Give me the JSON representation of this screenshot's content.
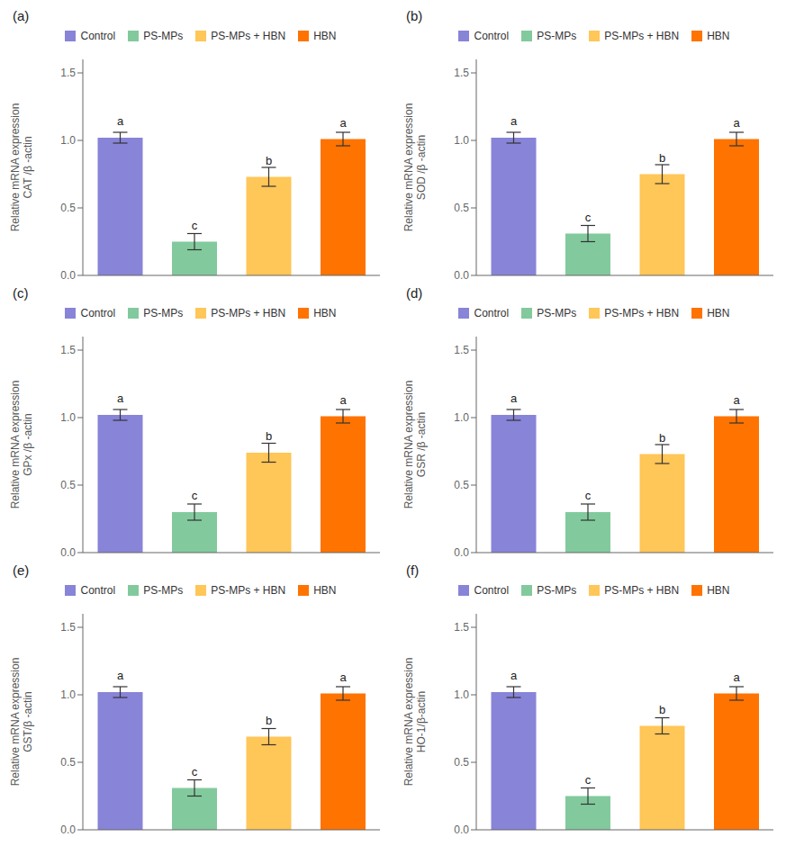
{
  "chart_data": [
    {
      "type": "bar",
      "title": "(a)",
      "y_label": "Relative mRNA expression\nCAT /β -actin",
      "categories": [
        null,
        null,
        null,
        null
      ],
      "series": [
        {
          "name": "Control",
          "color": "#8884d8",
          "values": [
            1.02,
            null,
            null,
            null
          ],
          "errors": [
            0.04,
            null,
            null,
            null
          ]
        },
        {
          "name": "PS-MPs",
          "color": "#82ca9d",
          "values": [
            null,
            0.25,
            null,
            null
          ],
          "errors": [
            null,
            0.06,
            null,
            null
          ]
        },
        {
          "name": "PS-MPs + HBN",
          "color": "#ffc658",
          "values": [
            null,
            null,
            0.73,
            null
          ],
          "errors": [
            null,
            null,
            0.07,
            null
          ]
        },
        {
          "name": "HBN",
          "color": "#ff7300",
          "values": [
            null,
            null,
            null,
            1.01
          ],
          "errors": [
            null,
            null,
            null,
            0.05
          ]
        }
      ],
      "annotations": [
        "a",
        "c",
        "b",
        "a"
      ],
      "ylim": [
        0,
        1.6
      ],
      "yticks": [
        {
          "value": 0,
          "label": "0.0"
        },
        0.5,
        {
          "value": 1,
          "label": "1.0"
        },
        1.5
      ],
      "tick_labels": "y",
      "legend": "top"
    },
    {
      "type": "bar",
      "title": "(b)",
      "y_label": "Relative mRNA expression\nSOD /β -actin",
      "categories": [
        null,
        null,
        null,
        null
      ],
      "series": [
        {
          "name": "Control",
          "color": "#8884d8",
          "values": [
            1.02,
            null,
            null,
            null
          ],
          "errors": [
            0.04,
            null,
            null,
            null
          ]
        },
        {
          "name": "PS-MPs",
          "color": "#82ca9d",
          "values": [
            null,
            0.31,
            null,
            null
          ],
          "errors": [
            null,
            0.06,
            null,
            null
          ]
        },
        {
          "name": "PS-MPs + HBN",
          "color": "#ffc658",
          "values": [
            null,
            null,
            0.75,
            null
          ],
          "errors": [
            null,
            null,
            0.07,
            null
          ]
        },
        {
          "name": "HBN",
          "color": "#ff7300",
          "values": [
            null,
            null,
            null,
            1.01
          ],
          "errors": [
            null,
            null,
            null,
            0.05
          ]
        }
      ],
      "annotations": [
        "a",
        "c",
        "b",
        "a"
      ],
      "ylim": [
        0,
        1.6
      ],
      "yticks": [
        {
          "value": 0,
          "label": "0.0"
        },
        0.5,
        {
          "value": 1,
          "label": "1.0"
        },
        1.5
      ],
      "tick_labels": "y",
      "legend": "top"
    },
    {
      "type": "bar",
      "title": "(c)",
      "y_label": "Relative mRNA expression\nGPx /β -actin",
      "categories": [
        null,
        null,
        null,
        null
      ],
      "series": [
        {
          "name": "Control",
          "color": "#8884d8",
          "values": [
            1.02,
            null,
            null,
            null
          ],
          "errors": [
            0.04,
            null,
            null,
            null
          ]
        },
        {
          "name": "PS-MPs",
          "color": "#82ca9d",
          "values": [
            null,
            0.3,
            null,
            null
          ],
          "errors": [
            null,
            0.06,
            null,
            null
          ]
        },
        {
          "name": "PS-MPs + HBN",
          "color": "#ffc658",
          "values": [
            null,
            null,
            0.74,
            null
          ],
          "errors": [
            null,
            null,
            0.07,
            null
          ]
        },
        {
          "name": "HBN",
          "color": "#ff7300",
          "values": [
            null,
            null,
            null,
            1.01
          ],
          "errors": [
            null,
            null,
            null,
            0.05
          ]
        }
      ],
      "annotations": [
        "a",
        "c",
        "b",
        "a"
      ],
      "ylim": [
        0,
        1.6
      ],
      "yticks": [
        {
          "value": 0,
          "label": "0.0"
        },
        0.5,
        {
          "value": 1,
          "label": "1.0"
        },
        1.5
      ],
      "tick_labels": "y",
      "legend": "top"
    },
    {
      "type": "bar",
      "title": "(d)",
      "y_label": "Relative mRNA expression\nGSR /β -actin",
      "categories": [
        null,
        null,
        null,
        null
      ],
      "series": [
        {
          "name": "Control",
          "color": "#8884d8",
          "values": [
            1.02,
            null,
            null,
            null
          ],
          "errors": [
            0.04,
            null,
            null,
            null
          ]
        },
        {
          "name": "PS-MPs",
          "color": "#82ca9d",
          "values": [
            null,
            0.3,
            null,
            null
          ],
          "errors": [
            null,
            0.06,
            null,
            null
          ]
        },
        {
          "name": "PS-MPs + HBN",
          "color": "#ffc658",
          "values": [
            null,
            null,
            0.73,
            null
          ],
          "errors": [
            null,
            null,
            0.07,
            null
          ]
        },
        {
          "name": "HBN",
          "color": "#ff7300",
          "values": [
            null,
            null,
            null,
            1.01
          ],
          "errors": [
            null,
            null,
            null,
            0.05
          ]
        }
      ],
      "annotations": [
        "a",
        "c",
        "b",
        "a"
      ],
      "ylim": [
        0,
        1.6
      ],
      "yticks": [
        {
          "value": 0,
          "label": "0.0"
        },
        0.5,
        {
          "value": 1,
          "label": "1.0"
        },
        1.5
      ],
      "tick_labels": "y",
      "legend": "top"
    },
    {
      "type": "bar",
      "title": "(e)",
      "y_label": "Relative mRNA expression\nGST/β -actin",
      "categories": [
        null,
        null,
        null,
        null
      ],
      "series": [
        {
          "name": "Control",
          "color": "#8884d8",
          "values": [
            1.02,
            null,
            null,
            null
          ],
          "errors": [
            0.04,
            null,
            null,
            null
          ]
        },
        {
          "name": "PS-MPs",
          "color": "#82ca9d",
          "values": [
            null,
            0.31,
            null,
            null
          ],
          "errors": [
            null,
            0.06,
            null,
            null
          ]
        },
        {
          "name": "PS-MPs + HBN",
          "color": "#ffc658",
          "values": [
            null,
            null,
            0.69,
            null
          ],
          "errors": [
            null,
            null,
            0.06,
            null
          ]
        },
        {
          "name": "HBN",
          "color": "#ff7300",
          "values": [
            null,
            null,
            null,
            1.01
          ],
          "errors": [
            null,
            null,
            null,
            0.05
          ]
        }
      ],
      "annotations": [
        "a",
        "c",
        "b",
        "a"
      ],
      "ylim": [
        0,
        1.6
      ],
      "yticks": [
        {
          "value": 0,
          "label": "0.0"
        },
        0.5,
        {
          "value": 1,
          "label": "1.0"
        },
        1.5
      ],
      "tick_labels": "y",
      "legend": "top"
    },
    {
      "type": "bar",
      "title": "(f)",
      "y_label": "Relative mRNA expression\nHO-1/β-actin",
      "categories": [
        null,
        null,
        null,
        null
      ],
      "series": [
        {
          "name": "Control",
          "color": "#8884d8",
          "values": [
            1.02,
            null,
            null,
            null
          ],
          "errors": [
            0.04,
            null,
            null,
            null
          ]
        },
        {
          "name": "PS-MPs",
          "color": "#82ca9d",
          "values": [
            null,
            0.25,
            null,
            null
          ],
          "errors": [
            null,
            0.06,
            null,
            null
          ]
        },
        {
          "name": "PS-MPs + HBN",
          "color": "#ffc658",
          "values": [
            null,
            null,
            0.77,
            null
          ],
          "errors": [
            null,
            null,
            0.06,
            null
          ]
        },
        {
          "name": "HBN",
          "color": "#ff7300",
          "values": [
            null,
            null,
            null,
            1.01
          ],
          "errors": [
            null,
            null,
            null,
            0.05
          ]
        }
      ],
      "annotations": [
        "a",
        "c",
        "b",
        "a"
      ],
      "ylim": [
        0,
        1.6
      ],
      "yticks": [
        {
          "value": 0,
          "label": "0.0"
        },
        0.5,
        {
          "value": 1,
          "label": "1.0"
        },
        1.5
      ],
      "tick_labels": "y",
      "legend": "top"
    }
  ]
}
